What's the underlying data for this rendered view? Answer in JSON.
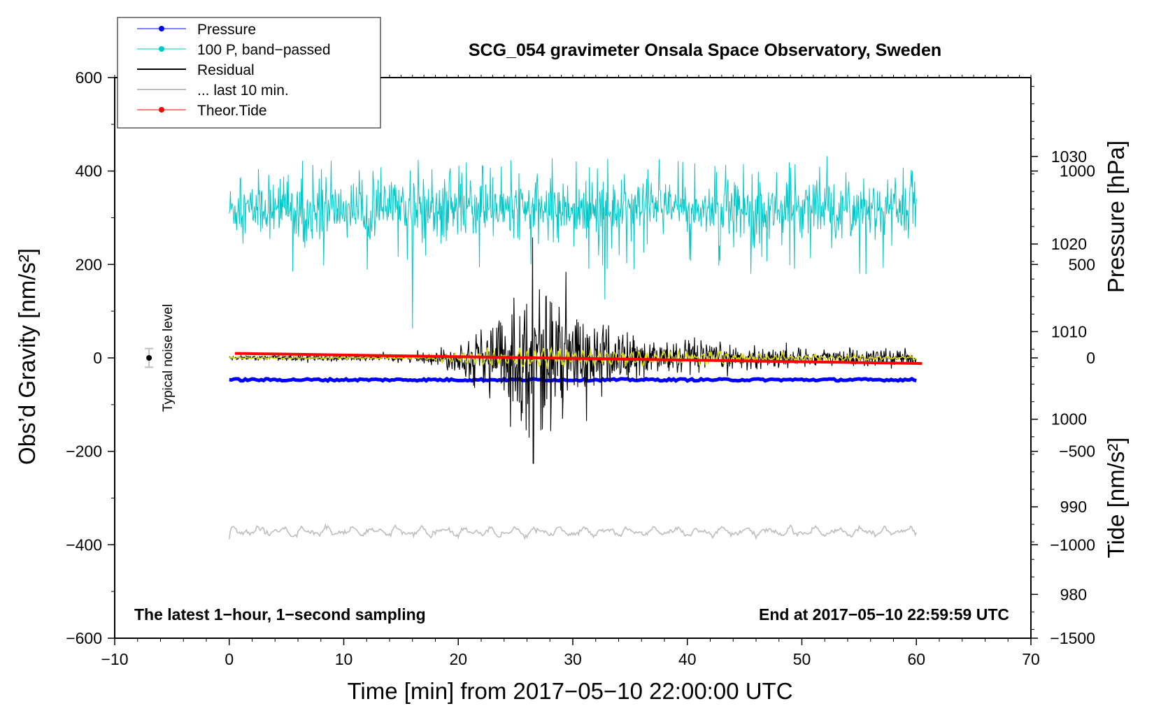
{
  "chart_data": {
    "type": "line",
    "title": "SCG_054 gravimeter Onsala Space Observatory, Sweden",
    "xlabel": "Time [min] from 2017−05−10 22:00:00 UTC",
    "ylabel_left": "Obs’d Gravity [nm/s²]",
    "ylabel_right_top": "Pressure [hPa]",
    "ylabel_right_bottom": "Tide [nm/s²]",
    "xlim": [
      -10,
      70
    ],
    "ylim": [
      -600,
      600
    ],
    "pressure_axis": [
      975,
      1039
    ],
    "tide_axis": [
      -1500,
      1500
    ],
    "x_ticks": [
      -10,
      0,
      10,
      20,
      30,
      40,
      50,
      60,
      70
    ],
    "x_tick_labels": [
      "−10",
      "0",
      "10",
      "20",
      "30",
      "40",
      "50",
      "60",
      "70"
    ],
    "y_ticks": [
      600,
      400,
      200,
      0,
      -200,
      -400,
      -600
    ],
    "y_tick_labels": [
      "600",
      "400",
      "200",
      "0",
      "−200",
      "−400",
      "−600"
    ],
    "pressure_ticks": [
      1030,
      1020,
      1010,
      1000,
      990,
      980
    ],
    "pressure_tick_labels": [
      "1030",
      "1020",
      "1010",
      "1000",
      "990",
      "980"
    ],
    "tide_ticks": [
      1000,
      500,
      0,
      -500,
      -1000,
      -1500
    ],
    "tide_tick_labels": [
      "1000",
      "500",
      "0",
      "−500",
      "−1000",
      "−1500"
    ],
    "legend": [
      {
        "label": "Pressure",
        "color": "#0000ff",
        "marker": true
      },
      {
        "label": "100 P, band−passed",
        "color": "#00c8c8",
        "marker": true
      },
      {
        "label": "Residual",
        "color": "#000000",
        "marker": false
      },
      {
        "label": "... last 10 min.",
        "color": "#bebebe",
        "marker": false
      },
      {
        "label": "Theor.Tide",
        "color": "#ff0000",
        "marker": true
      }
    ],
    "annotations": {
      "noise": "Typical noise level",
      "bottom_left": "The latest 1−hour, 1−second sampling",
      "bottom_right": "End at 2017−05−10 22:59:59 UTC"
    },
    "noise_level": {
      "x": -7,
      "y": 0,
      "error": 20
    },
    "series": [
      {
        "name": "Pressure",
        "axis": "pressure",
        "color": "#0000ff",
        "x_range": [
          0,
          60
        ],
        "approx_value_hPa": 1004.5
      },
      {
        "name": "100 P, band-passed",
        "axis": "gravity",
        "color": "#00c8c8",
        "x_range": [
          0,
          60
        ],
        "center": 318,
        "typical_range": [
          270,
          370
        ],
        "max": 432,
        "min": 60
      },
      {
        "name": "Residual",
        "axis": "gravity",
        "color": "#000000",
        "x_range": [
          0,
          60
        ],
        "center": 0,
        "max": 258,
        "min": -226,
        "peak_time_min": 26.5
      },
      {
        "name": "Residual (filtered)",
        "axis": "gravity",
        "color": "#d8d800",
        "x_range": [
          0,
          60
        ],
        "center": 0,
        "max": 25,
        "min": -25
      },
      {
        "name": "Theor.Tide",
        "axis": "tide",
        "color": "#ff0000",
        "x": [
          0.5,
          60.5
        ],
        "values": [
          24,
          -30
        ]
      },
      {
        "name": "... last 10 min.",
        "axis": "gravity",
        "color": "#bebebe",
        "x_range": [
          0,
          60
        ],
        "center": -372,
        "min": -388,
        "max": -355
      }
    ]
  }
}
